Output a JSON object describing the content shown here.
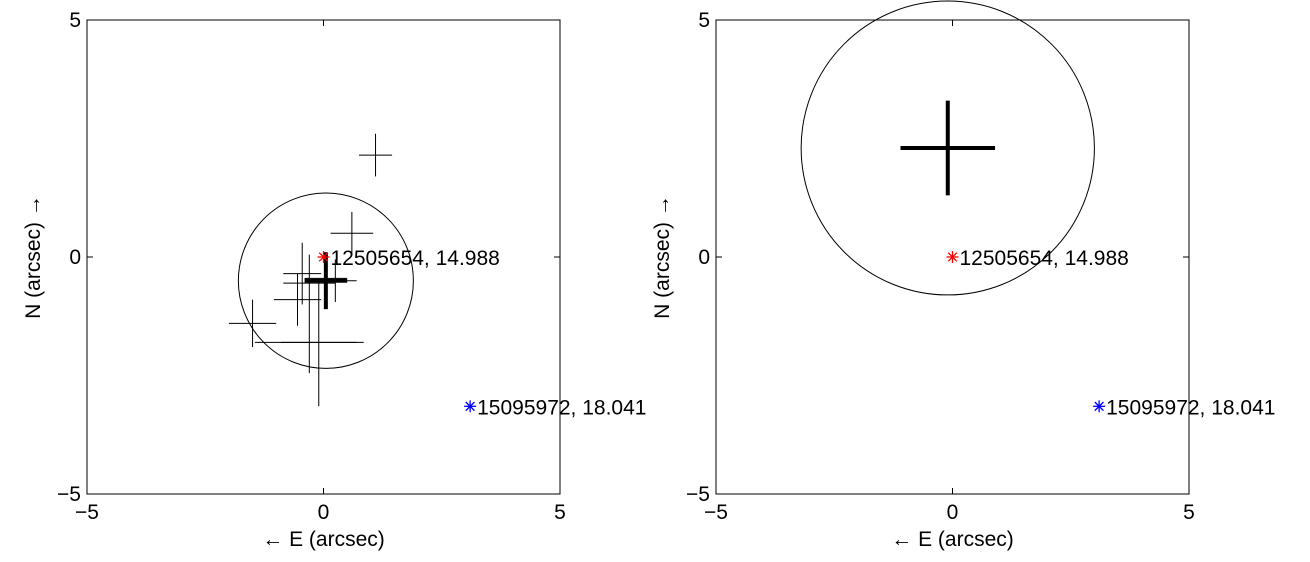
{
  "chart_data": [
    {
      "type": "scatter",
      "xlabel": "← E (arcsec)",
      "ylabel": "N (arcsec) →",
      "xlim": [
        -5,
        5
      ],
      "ylim": [
        -5,
        5
      ],
      "xticks": [
        "−5",
        "0",
        "5"
      ],
      "yticks": [
        "−5",
        "0",
        "5"
      ],
      "grid": false,
      "stars": [
        {
          "x": 0,
          "y": 0,
          "color": "#ff0000",
          "label": "12505654, 14.988"
        },
        {
          "x": 3.1,
          "y": -3.15,
          "color": "#0000ff",
          "label": "15095972, 18.041"
        }
      ],
      "measurements": [
        {
          "x": 1.1,
          "y": 2.15,
          "ex": 0.35,
          "ey": 0.45
        },
        {
          "x": 0.6,
          "y": 0.5,
          "ex": 0.45,
          "ey": 0.45
        },
        {
          "x": -0.45,
          "y": -0.35,
          "ex": 0.4,
          "ey": 0.65
        },
        {
          "x": -0.3,
          "y": -0.55,
          "ex": 0.55,
          "ey": 0.6
        },
        {
          "x": -0.55,
          "y": -0.9,
          "ex": 0.5,
          "ey": 0.55
        },
        {
          "x": -1.5,
          "y": -1.4,
          "ex": 0.5,
          "ey": 0.5
        },
        {
          "x": -0.3,
          "y": -1.8,
          "ex": 1.15,
          "ey": 0.65
        },
        {
          "x": -0.1,
          "y": -1.8,
          "ex": 0.8,
          "ey": 1.35
        },
        {
          "x": 0.05,
          "y": -0.45,
          "ex": 0.45,
          "ey": 0.55
        },
        {
          "x": 0.25,
          "y": -0.5,
          "ex": 0.45,
          "ey": 0.45
        }
      ],
      "mean": {
        "x": 0.05,
        "y": -0.5,
        "ex": 0.45,
        "ey": 0.6
      },
      "circle": {
        "x": 0.05,
        "y": -0.5,
        "r": 1.85
      }
    },
    {
      "type": "scatter",
      "xlabel": "← E (arcsec)",
      "ylabel": "N (arcsec) →",
      "xlim": [
        -5,
        5
      ],
      "ylim": [
        -5,
        5
      ],
      "xticks": [
        "−5",
        "0",
        "5"
      ],
      "yticks": [
        "−5",
        "0",
        "5"
      ],
      "grid": false,
      "stars": [
        {
          "x": 0,
          "y": 0,
          "color": "#ff0000",
          "label": "12505654, 14.988"
        },
        {
          "x": 3.1,
          "y": -3.15,
          "color": "#0000ff",
          "label": "15095972, 18.041"
        }
      ],
      "measurements": [],
      "mean": {
        "x": -0.1,
        "y": 2.3,
        "ex": 1.0,
        "ey": 1.0
      },
      "circle": {
        "x": -0.1,
        "y": 2.3,
        "r": 3.1
      }
    }
  ]
}
